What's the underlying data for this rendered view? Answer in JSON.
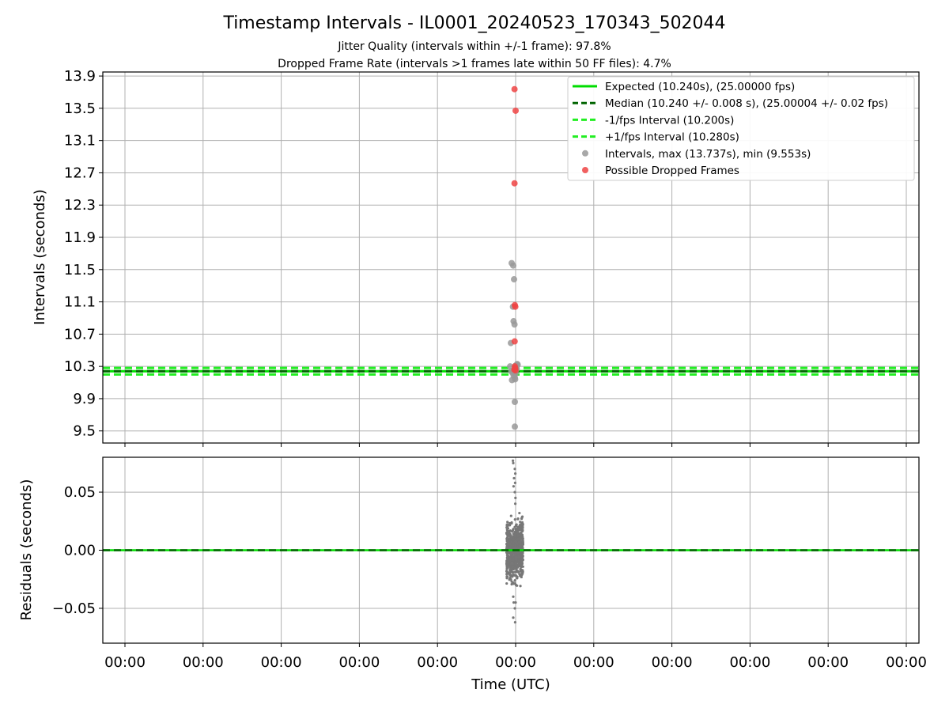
{
  "chart_data": [
    {
      "type": "scatter",
      "title": "Timestamp Intervals - IL0001_20240523_170343_502044",
      "subtitle_lines": [
        "Jitter Quality (intervals within +/-1 frame): 97.8%",
        "Dropped Frame Rate (intervals >1 frames late within 50 FF files): 4.7%"
      ],
      "xlabel": "",
      "ylabel": "Intervals (seconds)",
      "ylim": [
        9.35,
        13.95
      ],
      "y_ticks": [
        "9.5",
        "9.9",
        "10.3",
        "10.7",
        "11.1",
        "11.5",
        "11.9",
        "12.3",
        "12.7",
        "13.1",
        "13.5",
        "13.9"
      ],
      "y_tick_values": [
        9.5,
        9.9,
        10.3,
        10.7,
        11.1,
        11.5,
        11.9,
        12.3,
        12.7,
        13.1,
        13.5,
        13.9
      ],
      "grid": true,
      "legend_position": "top-right",
      "legend": [
        {
          "label": "Expected (10.240s), (25.00000 fps)",
          "kind": "solid-line",
          "color": "#00dd00"
        },
        {
          "label": "Median (10.240 +/- 0.008 s), (25.00004 +/- 0.02 fps)",
          "kind": "dashed-line",
          "color": "#006400"
        },
        {
          "label": "-1/fps Interval (10.200s)",
          "kind": "dashed-line",
          "color": "#22ee22"
        },
        {
          "label": "+1/fps Interval (10.280s)",
          "kind": "dashed-line",
          "color": "#22ee22"
        },
        {
          "label": "Intervals, max (13.737s), min (9.553s)",
          "kind": "marker",
          "color": "#999999"
        },
        {
          "label": "Possible Dropped Frames",
          "kind": "marker",
          "color": "#ee4444"
        }
      ],
      "reference_lines": [
        {
          "name": "Expected",
          "y": 10.24,
          "style": "solid",
          "color": "#00dd00"
        },
        {
          "name": "Median",
          "y": 10.24,
          "style": "dashed",
          "color": "#006400"
        },
        {
          "name": "-1/fps Interval",
          "y": 10.2,
          "style": "dashed",
          "color": "#22ee22"
        },
        {
          "name": "+1/fps Interval",
          "y": 10.28,
          "style": "dashed",
          "color": "#22ee22"
        }
      ],
      "series": [
        {
          "name": "Intervals, max (13.737s), min (9.553s)",
          "color": "#999999",
          "x": [
            -0.2,
            -0.1,
            -0.05,
            -0.12,
            -0.08,
            -0.02,
            -0.25,
            0.05,
            0.15,
            0.08,
            -0.15,
            -0.07,
            0.0,
            0.02,
            -0.18,
            0.12,
            -0.03,
            0.0,
            0.0,
            0.1,
            -0.3,
            -0.22,
            0.04,
            0.18
          ],
          "y": [
            11.58,
            11.55,
            11.38,
            11.04,
            10.86,
            10.82,
            10.59,
            10.31,
            10.33,
            10.29,
            10.22,
            10.18,
            10.16,
            10.14,
            10.13,
            10.27,
            10.25,
            9.86,
            9.553,
            10.26,
            10.3,
            10.24,
            10.21,
            10.32
          ]
        },
        {
          "name": "Possible Dropped Frames",
          "color": "#ee4444",
          "x": [
            -0.02,
            0.05,
            -0.02,
            0.0,
            0.03,
            -0.01,
            0.0,
            0.02,
            -0.03,
            0.04,
            0.01
          ],
          "y": [
            13.737,
            13.47,
            12.57,
            11.06,
            11.04,
            10.61,
            10.3,
            10.28,
            10.26,
            10.25,
            10.27
          ]
        }
      ]
    },
    {
      "type": "scatter",
      "title": "",
      "xlabel": "Time (UTC)",
      "ylabel": "Residuals (seconds)",
      "ylim": [
        -0.08,
        0.08
      ],
      "y_ticks": [
        "−0.05",
        "0.00",
        "0.05"
      ],
      "y_tick_values": [
        -0.05,
        0.0,
        0.05
      ],
      "x_ticks": [
        "00:00",
        "00:00",
        "00:00",
        "00:00",
        "00:00",
        "00:00",
        "00:00",
        "00:00",
        "00:00",
        "00:00",
        "00:00"
      ],
      "grid": true,
      "reference_lines": [
        {
          "name": "Expected",
          "y": 0.0,
          "style": "solid",
          "color": "#00dd00"
        },
        {
          "name": "Median",
          "y": 0.0,
          "style": "dashed",
          "color": "#006400"
        }
      ],
      "series": [
        {
          "name": "Residuals",
          "color": "#777777",
          "x": [
            -0.12,
            -0.1,
            0.0,
            0.03,
            -0.05,
            0.02,
            -0.08,
            0.0,
            0.04,
            0.03,
            -0.1,
            -0.07,
            0.0,
            -0.1,
            0.05,
            0.02
          ],
          "y": [
            0.077,
            0.075,
            0.07,
            0.066,
            0.062,
            0.058,
            0.055,
            0.05,
            0.045,
            0.04,
            -0.04,
            -0.045,
            -0.05,
            -0.058,
            -0.045,
            -0.062
          ]
        }
      ]
    }
  ]
}
